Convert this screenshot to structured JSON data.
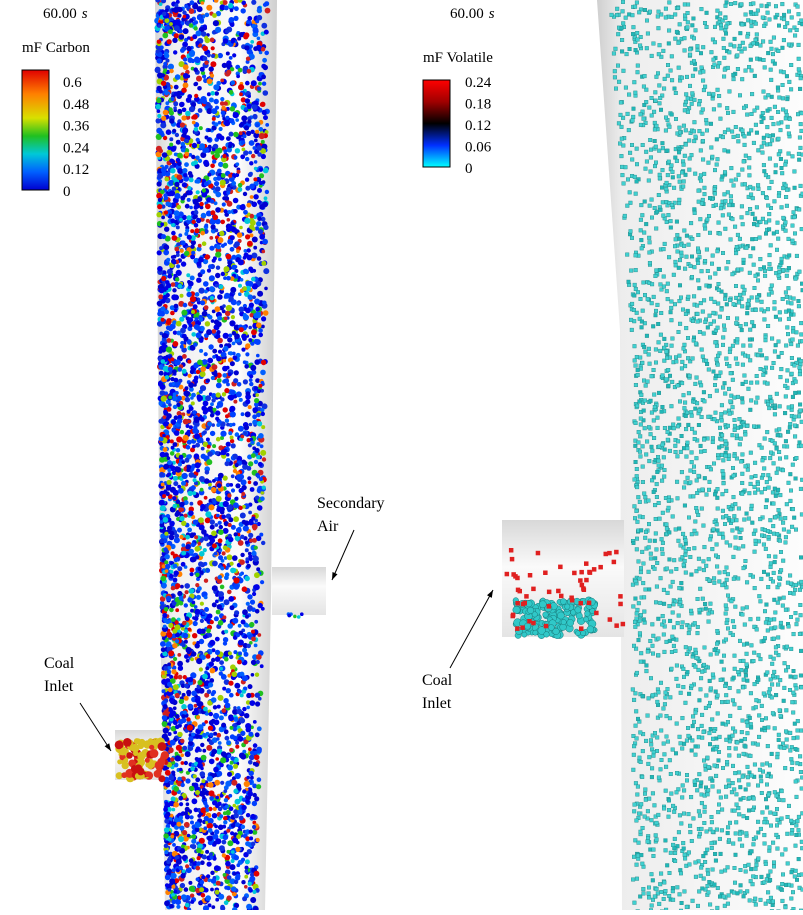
{
  "panels": [
    {
      "time": "60.00",
      "time_unit": "s",
      "colorbar": {
        "title": "mF Carbon",
        "lim": [
          0,
          0.6
        ],
        "ticks": [
          0.6,
          0.48,
          0.36,
          0.24,
          0.12,
          0
        ]
      },
      "annotations": [
        {
          "lines": [
            "Secondary",
            "Air"
          ]
        },
        {
          "lines": [
            "Coal",
            "Inlet"
          ]
        }
      ]
    },
    {
      "time": "60.00",
      "time_unit": "s",
      "colorbar": {
        "title": "mF Volatile",
        "lim": [
          0,
          0.24
        ],
        "ticks": [
          0.24,
          0.18,
          0.12,
          0.06,
          0
        ]
      },
      "annotations": [
        {
          "lines": [
            "Coal",
            "Inlet"
          ]
        }
      ]
    }
  ]
}
